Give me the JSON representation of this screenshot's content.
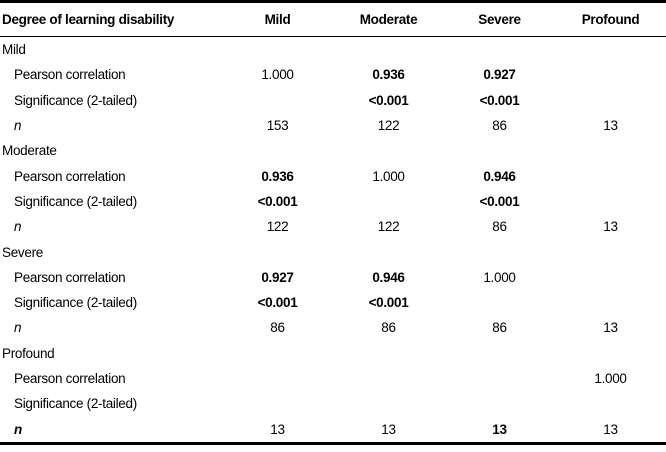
{
  "page": {
    "background": "#ffffff",
    "text_color": "#000000",
    "rule_color": "#000000"
  },
  "table": {
    "columns": [
      "Degree of learning disability",
      "Mild",
      "Moderate",
      "Severe",
      "Profound"
    ],
    "sections": [
      {
        "title": "Mild",
        "rows": [
          {
            "label": "Pearson correlation",
            "label_style": "normal",
            "values": [
              "1.000",
              "0.936",
              "0.927",
              ""
            ],
            "bold": [
              false,
              true,
              true,
              false
            ]
          },
          {
            "label": "Significance (2-tailed)",
            "label_style": "normal",
            "values": [
              "",
              "<0.001",
              "<0.001",
              ""
            ],
            "bold": [
              false,
              true,
              true,
              false
            ]
          },
          {
            "label": "n",
            "label_style": "italic",
            "values": [
              "153",
              "122",
              "86",
              "13"
            ],
            "bold": [
              false,
              false,
              false,
              false
            ]
          }
        ]
      },
      {
        "title": "Moderate",
        "rows": [
          {
            "label": "Pearson correlation",
            "label_style": "normal",
            "values": [
              "0.936",
              "1.000",
              "0.946",
              ""
            ],
            "bold": [
              true,
              false,
              true,
              false
            ]
          },
          {
            "label": "Significance (2-tailed)",
            "label_style": "normal",
            "values": [
              "<0.001",
              "",
              "<0.001",
              ""
            ],
            "bold": [
              true,
              false,
              true,
              false
            ]
          },
          {
            "label": "n",
            "label_style": "italic",
            "values": [
              "122",
              "122",
              "86",
              "13"
            ],
            "bold": [
              false,
              false,
              false,
              false
            ]
          }
        ]
      },
      {
        "title": "Severe",
        "rows": [
          {
            "label": "Pearson correlation",
            "label_style": "normal",
            "values": [
              "0.927",
              "0.946",
              "1.000",
              ""
            ],
            "bold": [
              true,
              true,
              false,
              false
            ]
          },
          {
            "label": "Significance (2-tailed)",
            "label_style": "normal",
            "values": [
              "<0.001",
              "<0.001",
              "",
              ""
            ],
            "bold": [
              true,
              true,
              false,
              false
            ]
          },
          {
            "label": "n",
            "label_style": "italic",
            "values": [
              "86",
              "86",
              "86",
              "13"
            ],
            "bold": [
              false,
              false,
              false,
              false
            ]
          }
        ]
      },
      {
        "title": "Profound",
        "rows": [
          {
            "label": "Pearson correlation",
            "label_style": "normal",
            "values": [
              "",
              "",
              "",
              "1.000"
            ],
            "bold": [
              false,
              false,
              false,
              false
            ]
          },
          {
            "label": "Significance (2-tailed)",
            "label_style": "normal",
            "values": [
              "",
              "",
              "",
              ""
            ],
            "bold": [
              false,
              false,
              false,
              false
            ]
          },
          {
            "label": "n",
            "label_style": "bold-italic",
            "values": [
              "13",
              "13",
              "13",
              "13"
            ],
            "bold": [
              false,
              false,
              true,
              false
            ]
          }
        ]
      }
    ]
  }
}
